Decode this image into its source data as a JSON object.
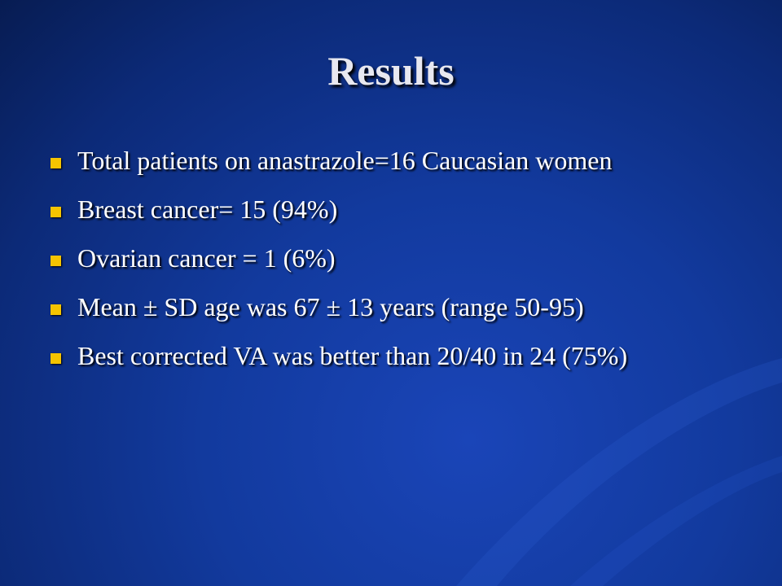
{
  "slide": {
    "title": "Results",
    "bullets": [
      "Total patients on anastrazole=16 Caucasian women",
      "Breast cancer= 15 (94%)",
      "Ovarian cancer = 1 (6%)",
      "Mean ± SD age was 67 ± 13 years (range 50-95)",
      "Best corrected VA was better than 20/40 in 24 (75%)"
    ]
  }
}
